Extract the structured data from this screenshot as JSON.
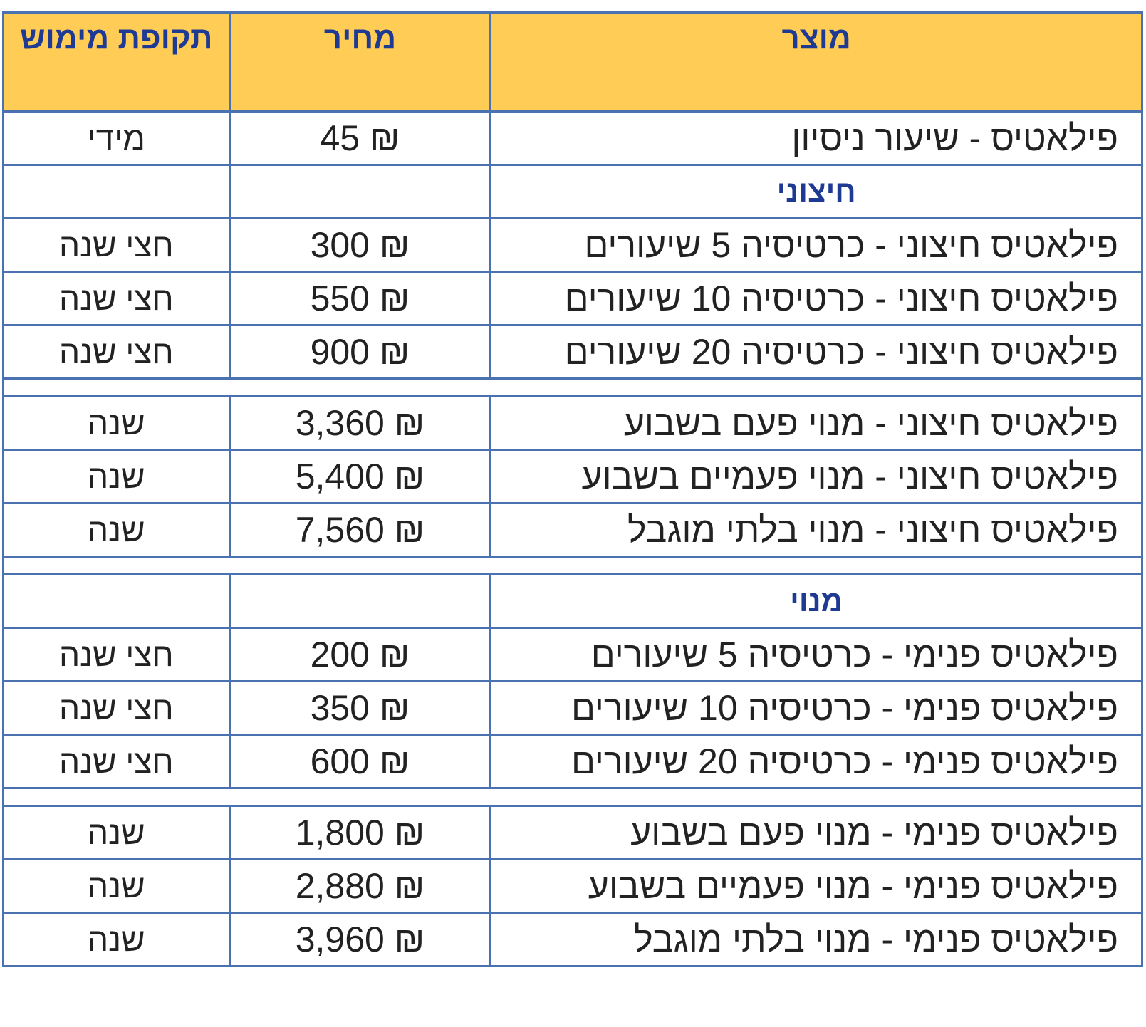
{
  "header": {
    "product": "מוצר",
    "price": "מחיר",
    "validity": "תקופת מימוש"
  },
  "trial": {
    "product": "פילאטיס - שיעור ניסיון",
    "price": "45 ₪",
    "validity": "מידי"
  },
  "external_section": {
    "title": "חיצוני"
  },
  "external_cards": [
    {
      "product": "פילאטיס חיצוני - כרטיסיה 5 שיעורים",
      "price": "300 ₪",
      "validity": "חצי שנה"
    },
    {
      "product": "פילאטיס חיצוני - כרטיסיה 10 שיעורים",
      "price": "550 ₪",
      "validity": "חצי שנה"
    },
    {
      "product": "פילאטיס חיצוני - כרטיסיה 20 שיעורים",
      "price": "900 ₪",
      "validity": "חצי שנה"
    }
  ],
  "external_subs": [
    {
      "product": "פילאטיס חיצוני - מנוי פעם בשבוע",
      "price": "3,360 ₪",
      "validity": "שנה"
    },
    {
      "product": "פילאטיס חיצוני - מנוי פעמיים בשבוע",
      "price": "5,400 ₪",
      "validity": "שנה"
    },
    {
      "product": "פילאטיס חיצוני - מנוי בלתי מוגבל",
      "price": "7,560 ₪",
      "validity": "שנה"
    }
  ],
  "member_section": {
    "title": "מנוי"
  },
  "internal_cards": [
    {
      "product": "פילאטיס פנימי - כרטיסיה 5 שיעורים",
      "price": "200 ₪",
      "validity": "חצי שנה"
    },
    {
      "product": "פילאטיס פנימי - כרטיסיה 10 שיעורים",
      "price": "350 ₪",
      "validity": "חצי שנה"
    },
    {
      "product": "פילאטיס פנימי - כרטיסיה 20 שיעורים",
      "price": "600 ₪",
      "validity": "חצי שנה"
    }
  ],
  "internal_subs": [
    {
      "product": "פילאטיס פנימי - מנוי פעם בשבוע",
      "price": "1,800 ₪",
      "validity": "שנה"
    },
    {
      "product": "פילאטיס פנימי - מנוי פעמיים בשבוע",
      "price": "2,880 ₪",
      "validity": "שנה"
    },
    {
      "product": "פילאטיס פנימי - מנוי בלתי מוגבל",
      "price": "3,960 ₪",
      "validity": "שנה"
    }
  ],
  "colors": {
    "header_bg": "#ffcc55",
    "header_text": "#1f3a93",
    "border": "#4a72b0",
    "body_text": "#222222"
  }
}
